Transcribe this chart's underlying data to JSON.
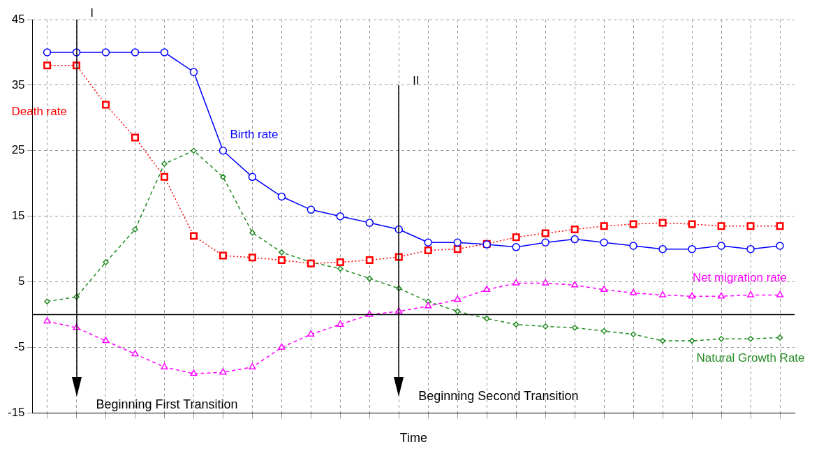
{
  "chart_data": {
    "type": "line",
    "xlabel": "Time",
    "categories": [
      null,
      null,
      null,
      null,
      null,
      null,
      null,
      null,
      null,
      null,
      null,
      null,
      null,
      null,
      null,
      null,
      null,
      null,
      null,
      null,
      null,
      null,
      null,
      null,
      null,
      null
    ],
    "ylim": [
      -15,
      45
    ],
    "yticks": [
      -15,
      -5,
      5,
      15,
      25,
      35,
      45
    ],
    "grid": true,
    "tick_labels": "y",
    "series": [
      {
        "name": "Birth rate",
        "color": "#0000ff",
        "marker": "circle",
        "line_style": "solid",
        "values": [
          40,
          40,
          40,
          40,
          40,
          37,
          25,
          21,
          18,
          16,
          15,
          14,
          13,
          11,
          11,
          10.7,
          10.3,
          11,
          11.5,
          11,
          10.5,
          10,
          10,
          10.5,
          10,
          10.5
        ]
      },
      {
        "name": "Death rate",
        "color": "#ff0000",
        "marker": "square",
        "line_style": "dotted",
        "values": [
          38,
          38,
          32,
          27,
          21,
          12,
          9,
          8.7,
          8.3,
          7.8,
          8,
          8.3,
          8.8,
          9.8,
          10,
          10.8,
          11.8,
          12.4,
          13,
          13.5,
          13.8,
          14,
          13.8,
          13.5,
          13.5,
          13.5
        ]
      },
      {
        "name": "Net migration rate",
        "color": "#ff00ff",
        "marker": "triangle",
        "line_style": "dashed",
        "values": [
          -1,
          -2,
          -4,
          -6,
          -8,
          -9,
          -8.8,
          -8,
          -5,
          -3,
          -1.5,
          0,
          0.5,
          1.3,
          2.3,
          3.8,
          4.8,
          4.8,
          4.5,
          3.8,
          3.3,
          3,
          2.8,
          2.8,
          3,
          3
        ]
      },
      {
        "name": "Natural Growth Rate",
        "color": "#228b22",
        "marker": "diamond",
        "line_style": "dashed",
        "values": [
          2,
          2.7,
          8,
          13,
          23,
          25,
          21,
          12.5,
          9.5,
          8,
          7,
          5.5,
          4,
          2,
          0.5,
          -0.6,
          -1.5,
          -1.8,
          -2,
          -2.5,
          -3,
          -4,
          -4,
          -3.7,
          -3.7,
          -3.5
        ]
      }
    ],
    "ref_lines": [
      {
        "axis": "y",
        "value": 0,
        "color": "#000000",
        "line_style": "solid"
      }
    ],
    "annotations": [
      "I",
      "II",
      "Beginning First Transition",
      "Beginning Second Transition"
    ]
  }
}
